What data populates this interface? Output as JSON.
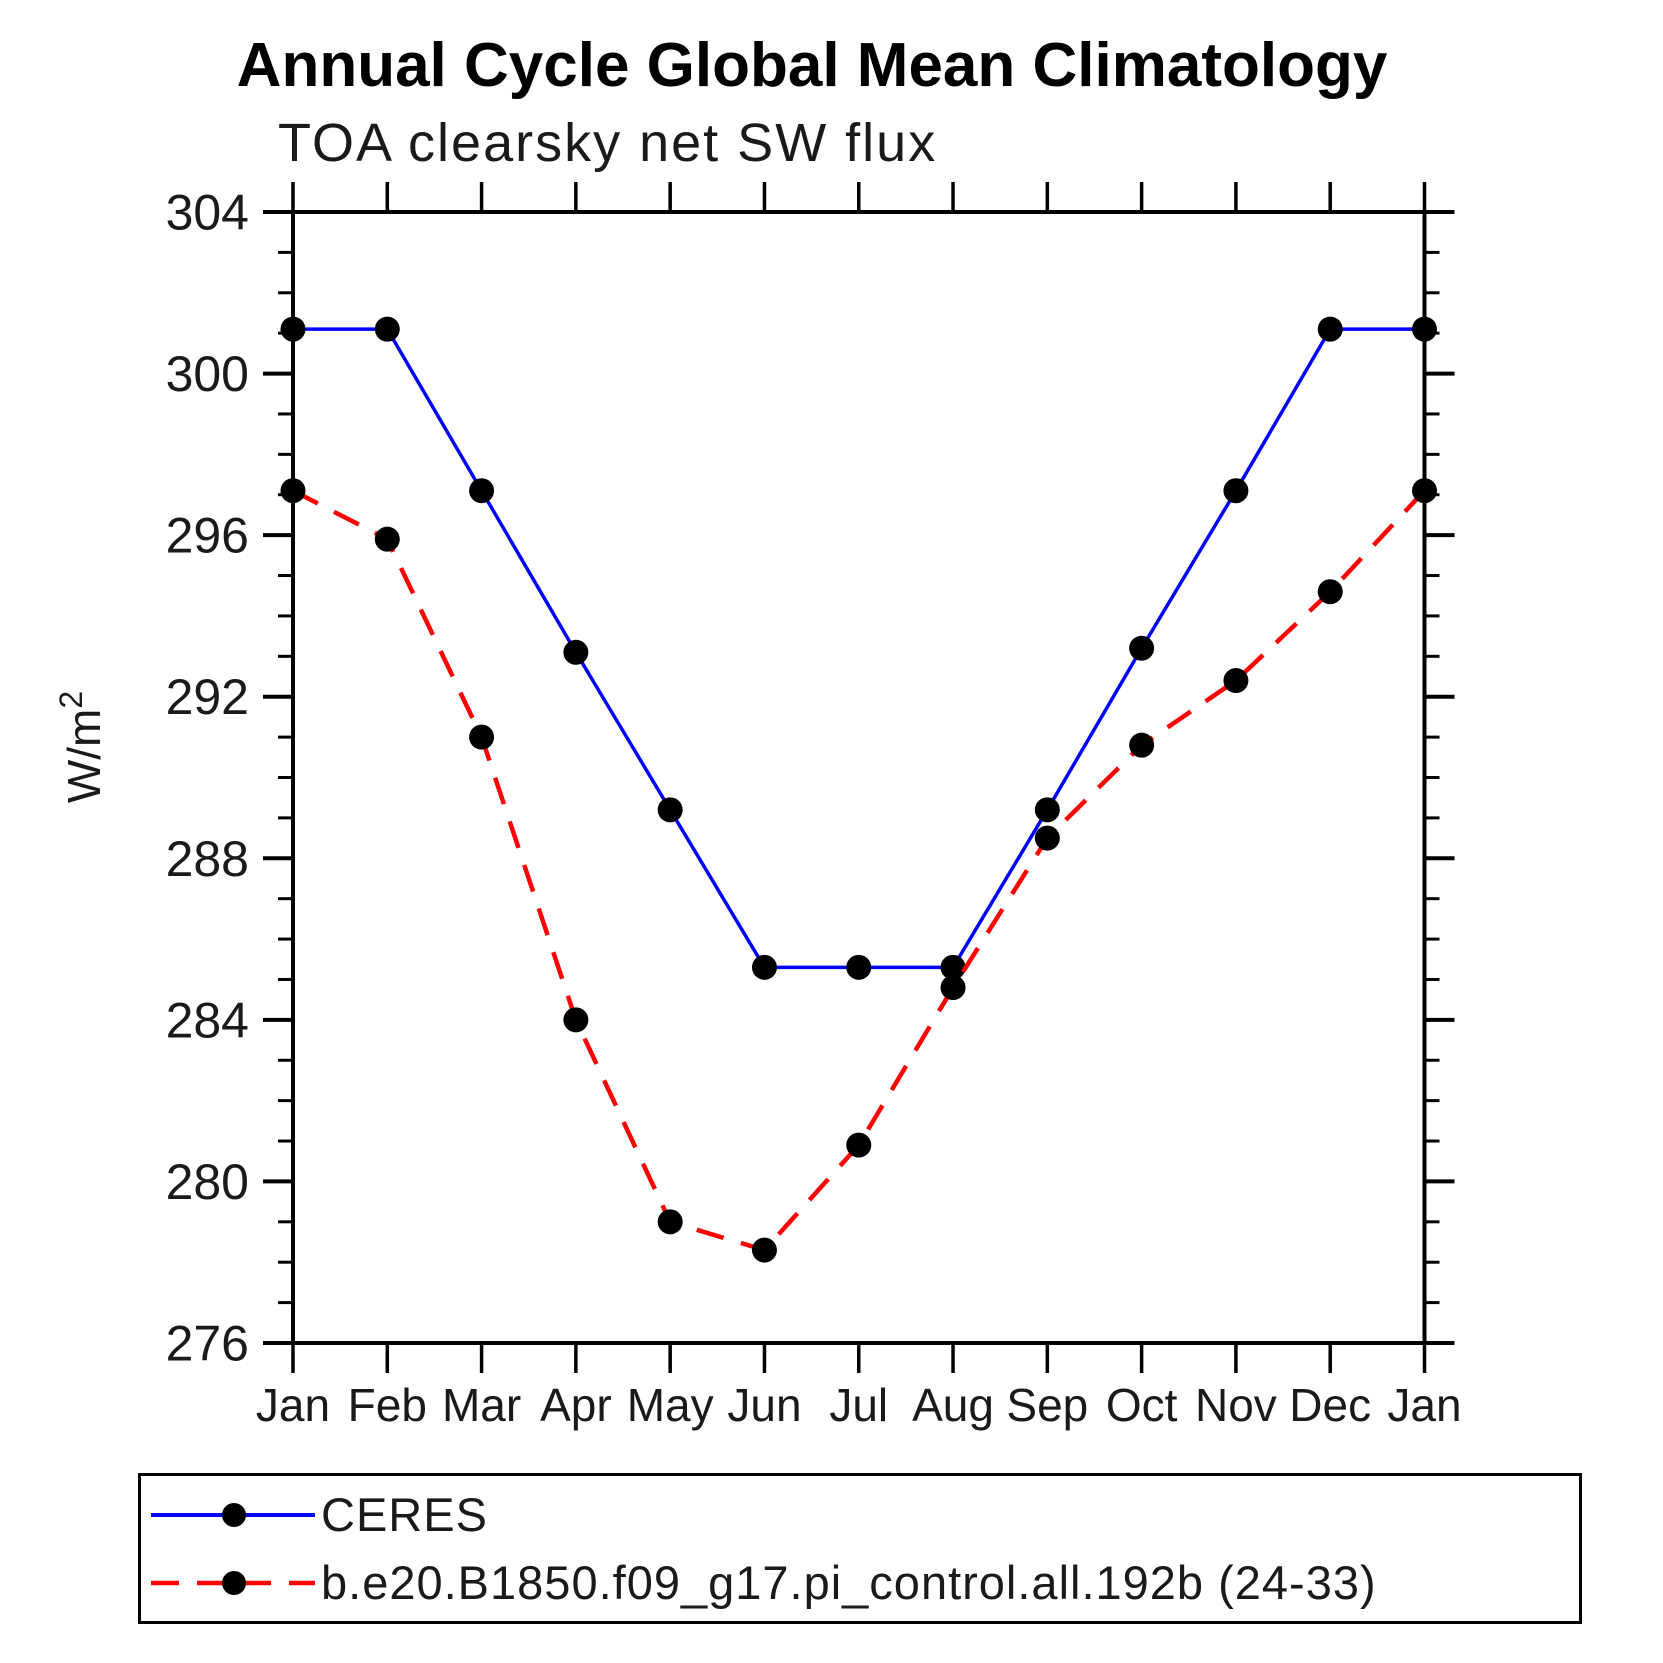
{
  "title": "Annual Cycle Global Mean Climatology",
  "subtitle": "TOA clearsky net SW flux",
  "chart_data": {
    "type": "line",
    "title": "Annual Cycle Global Mean Climatology",
    "subtitle": "TOA clearsky net SW flux",
    "xlabel": "",
    "ylabel": "W/m²",
    "ylabel_base": "W/m",
    "ylabel_sup": "2",
    "categories": [
      "Jan",
      "Feb",
      "Mar",
      "Apr",
      "May",
      "Jun",
      "Jul",
      "Aug",
      "Sep",
      "Oct",
      "Nov",
      "Dec",
      "Jan"
    ],
    "ylim": [
      276,
      304
    ],
    "ytick_major_step": 4,
    "ytick_minor_step": 1,
    "ytick_labels": [
      "276",
      "280",
      "284",
      "288",
      "292",
      "296",
      "300",
      "304"
    ],
    "grid": false,
    "legend_position": "below-axis-box",
    "series": [
      {
        "name": "CERES",
        "color": "#0000ff",
        "style": "solid",
        "marker": "black-dot",
        "values": [
          301.1,
          301.1,
          297.1,
          293.1,
          289.2,
          285.3,
          285.3,
          285.3,
          289.2,
          293.2,
          297.1,
          301.1,
          301.1
        ]
      },
      {
        "name": "b.e20.B1850.f09_g17.pi_control.all.192b (24-33)",
        "color": "#ff0000",
        "style": "dashed",
        "marker": "black-dot",
        "values": [
          297.1,
          295.9,
          291.0,
          284.0,
          279.0,
          278.3,
          280.9,
          284.8,
          288.5,
          290.8,
          292.4,
          294.6,
          297.1
        ]
      }
    ]
  },
  "colors": {
    "axis": "#000000",
    "marker": "#000000",
    "background": "#ffffff",
    "ceres_line": "#0000ff",
    "model_line": "#ff0000"
  }
}
